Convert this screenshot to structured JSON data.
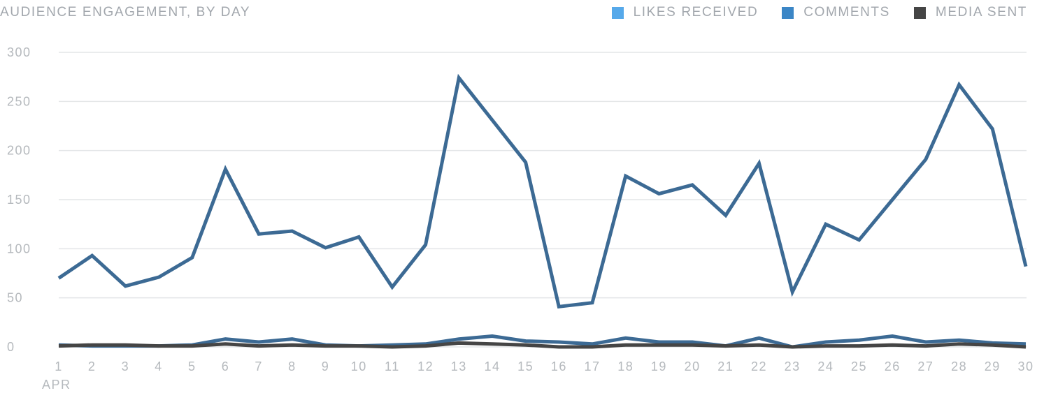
{
  "header": {
    "title": "AUDIENCE ENGAGEMENT, BY DAY"
  },
  "chart_data": {
    "type": "line",
    "title": "AUDIENCE ENGAGEMENT, BY DAY",
    "xlabel": "",
    "ylabel": "",
    "x_sublabel": "APR",
    "categories": [
      "1",
      "2",
      "3",
      "4",
      "5",
      "6",
      "7",
      "8",
      "9",
      "10",
      "11",
      "12",
      "13",
      "14",
      "15",
      "16",
      "17",
      "18",
      "19",
      "20",
      "21",
      "22",
      "23",
      "24",
      "25",
      "26",
      "27",
      "28",
      "29",
      "30"
    ],
    "ylim": [
      0,
      300
    ],
    "yticks": [
      0,
      50,
      100,
      150,
      200,
      250,
      300
    ],
    "grid": true,
    "legend_position": "top-right",
    "series": [
      {
        "name": "LIKES RECEIVED",
        "color": "#56a9ea",
        "values": [
          70,
          93,
          62,
          71,
          91,
          181,
          115,
          118,
          101,
          112,
          61,
          104,
          274,
          231,
          188,
          41,
          45,
          174,
          156,
          165,
          134,
          187,
          56,
          125,
          109,
          150,
          191,
          267,
          222,
          82
        ]
      },
      {
        "name": "COMMENTS",
        "color": "#3b86c6",
        "values": [
          2,
          1,
          1,
          1,
          2,
          8,
          5,
          8,
          2,
          1,
          2,
          3,
          8,
          11,
          6,
          5,
          3,
          9,
          5,
          5,
          1,
          9,
          0,
          5,
          7,
          11,
          5,
          7,
          4,
          3
        ]
      },
      {
        "name": "MEDIA SENT",
        "color": "#454545",
        "values": [
          1,
          2,
          2,
          1,
          1,
          3,
          1,
          2,
          1,
          1,
          0,
          1,
          4,
          3,
          2,
          0,
          0,
          2,
          2,
          2,
          1,
          2,
          0,
          1,
          1,
          2,
          1,
          3,
          2,
          0
        ]
      }
    ]
  }
}
